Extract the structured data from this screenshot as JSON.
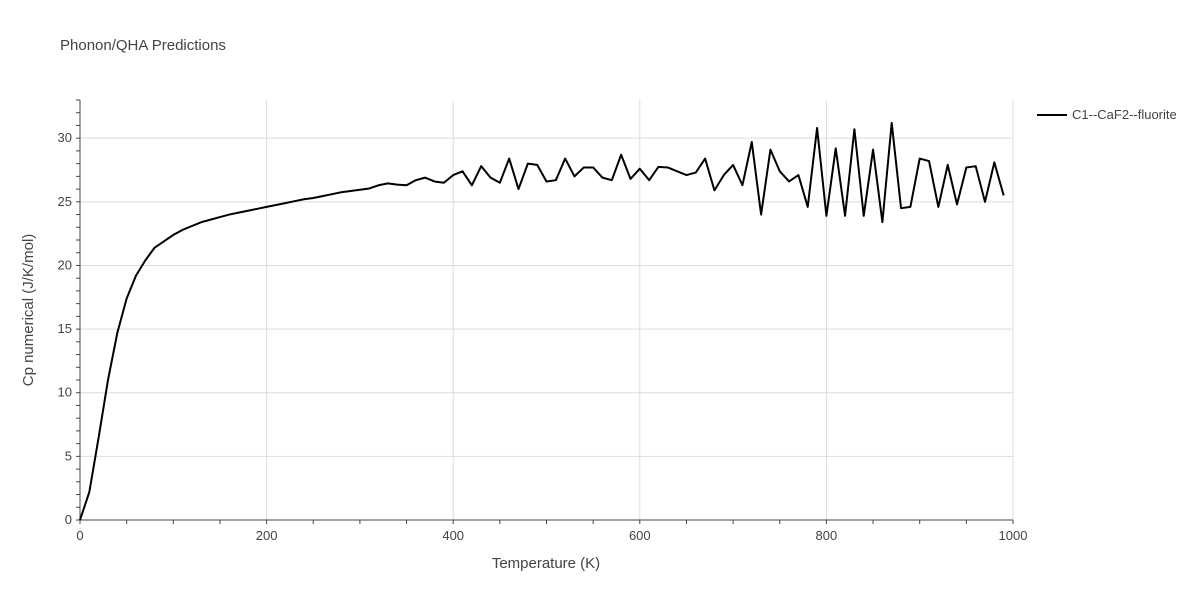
{
  "chart_data": {
    "type": "line",
    "title": "Phonon/QHA Predictions",
    "xlabel": "Temperature (K)",
    "ylabel": "Cp numerical (J/K/mol)",
    "xlim": [
      0,
      1000
    ],
    "ylim": [
      0,
      33
    ],
    "x_ticks": [
      0,
      200,
      400,
      600,
      800,
      1000
    ],
    "y_ticks": [
      0,
      5,
      10,
      15,
      20,
      25,
      30
    ],
    "x_tick_labels": [
      "0",
      "200",
      "400",
      "600",
      "800",
      "1000"
    ],
    "y_tick_labels": [
      "0",
      "5",
      "10",
      "15",
      "20",
      "25",
      "30"
    ],
    "grid": true,
    "legend_position": "top-right",
    "colors": {
      "series": "#000000",
      "grid": "#dddddd",
      "axis": "#444444",
      "text": "#444444"
    },
    "series": [
      {
        "name": "C1--CaF2--fluorite",
        "x": [
          0,
          10,
          20,
          30,
          40,
          50,
          60,
          70,
          80,
          90,
          100,
          110,
          120,
          130,
          140,
          150,
          160,
          170,
          180,
          190,
          200,
          210,
          220,
          230,
          240,
          250,
          260,
          270,
          280,
          290,
          300,
          310,
          320,
          330,
          340,
          350,
          360,
          370,
          380,
          390,
          400,
          410,
          420,
          430,
          440,
          450,
          460,
          470,
          480,
          490,
          500,
          510,
          520,
          530,
          540,
          550,
          560,
          570,
          580,
          590,
          600,
          610,
          620,
          630,
          640,
          650,
          660,
          670,
          680,
          690,
          700,
          710,
          720,
          730,
          740,
          750,
          760,
          770,
          780,
          790,
          800,
          810,
          820,
          830,
          840,
          850,
          860,
          870,
          880,
          890,
          900,
          910,
          920,
          930,
          940,
          950,
          960,
          970,
          980,
          990
        ],
        "values": [
          0,
          2.2,
          6.5,
          11.0,
          14.7,
          17.4,
          19.2,
          20.4,
          21.4,
          21.9,
          22.4,
          22.8,
          23.1,
          23.4,
          23.6,
          23.8,
          24.0,
          24.15,
          24.3,
          24.45,
          24.6,
          24.75,
          24.9,
          25.05,
          25.2,
          25.3,
          25.45,
          25.6,
          25.75,
          25.85,
          25.95,
          26.05,
          26.3,
          26.45,
          26.35,
          26.3,
          26.7,
          26.9,
          26.6,
          26.5,
          27.1,
          27.4,
          26.3,
          27.8,
          26.9,
          26.5,
          28.4,
          26.0,
          28.0,
          27.9,
          26.6,
          26.7,
          28.4,
          27.0,
          27.7,
          27.7,
          26.9,
          26.7,
          28.7,
          26.8,
          27.6,
          26.7,
          27.75,
          27.7,
          27.4,
          27.1,
          27.3,
          28.4,
          25.9,
          27.1,
          27.9,
          26.3,
          29.7,
          24.0,
          29.1,
          27.4,
          26.6,
          27.1,
          24.6,
          30.8,
          23.9,
          29.2,
          23.9,
          30.7,
          23.9,
          29.1,
          23.4,
          31.2,
          24.5,
          24.6,
          28.4,
          28.2,
          24.6,
          27.9,
          24.8,
          27.7,
          27.8,
          25.0,
          28.1,
          25.5
        ]
      }
    ]
  }
}
